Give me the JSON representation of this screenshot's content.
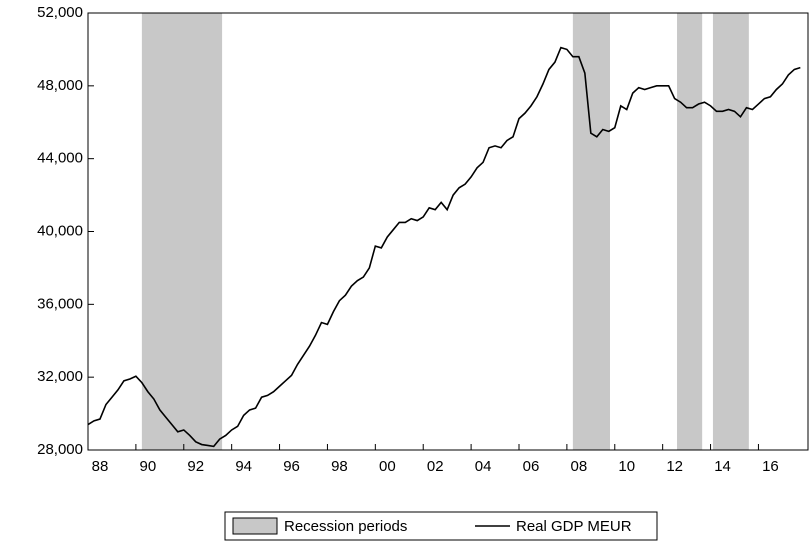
{
  "chart_data": {
    "type": "line",
    "x": [
      1988,
      1988.25,
      1988.5,
      1988.75,
      1989,
      1989.25,
      1989.5,
      1989.75,
      1990,
      1990.25,
      1990.5,
      1990.75,
      1991,
      1991.25,
      1991.5,
      1991.75,
      1992,
      1992.25,
      1992.5,
      1992.75,
      1993,
      1993.25,
      1993.5,
      1993.75,
      1994,
      1994.25,
      1994.5,
      1994.75,
      1995,
      1995.25,
      1995.5,
      1995.75,
      1996,
      1996.25,
      1996.5,
      1996.75,
      1997,
      1997.25,
      1997.5,
      1997.75,
      1998,
      1998.25,
      1998.5,
      1998.75,
      1999,
      1999.25,
      1999.5,
      1999.75,
      2000,
      2000.25,
      2000.5,
      2000.75,
      2001,
      2001.25,
      2001.5,
      2001.75,
      2002,
      2002.25,
      2002.5,
      2002.75,
      2003,
      2003.25,
      2003.5,
      2003.75,
      2004,
      2004.25,
      2004.5,
      2004.75,
      2005,
      2005.25,
      2005.5,
      2005.75,
      2006,
      2006.25,
      2006.5,
      2006.75,
      2007,
      2007.25,
      2007.5,
      2007.75,
      2008,
      2008.25,
      2008.5,
      2008.75,
      2009,
      2009.25,
      2009.5,
      2009.75,
      2010,
      2010.25,
      2010.5,
      2010.75,
      2011,
      2011.25,
      2011.5,
      2011.75,
      2012,
      2012.25,
      2012.5,
      2012.75,
      2013,
      2013.25,
      2013.5,
      2013.75,
      2014,
      2014.25,
      2014.5,
      2014.75,
      2015,
      2015.25,
      2015.5,
      2015.75,
      2016,
      2016.25,
      2016.5,
      2016.75,
      2017,
      2017.25,
      2017.5,
      2017.75
    ],
    "series": [
      {
        "name": "Real GDP MEUR",
        "color": "#000000",
        "values": [
          29400,
          29600,
          29700,
          30500,
          30900,
          31300,
          31800,
          31900,
          32050,
          31700,
          31200,
          30800,
          30200,
          29800,
          29400,
          29000,
          29100,
          28800,
          28450,
          28300,
          28250,
          28200,
          28600,
          28800,
          29100,
          29300,
          29900,
          30200,
          30300,
          30900,
          31000,
          31200,
          31500,
          31800,
          32100,
          32700,
          33200,
          33700,
          34300,
          35000,
          34900,
          35600,
          36200,
          36500,
          37000,
          37300,
          37500,
          38000,
          39200,
          39100,
          39700,
          40100,
          40500,
          40500,
          40700,
          40600,
          40800,
          41300,
          41200,
          41600,
          41200,
          42000,
          42400,
          42600,
          43000,
          43500,
          43800,
          44600,
          44700,
          44600,
          45000,
          45200,
          46200,
          46500,
          46900,
          47400,
          48100,
          48900,
          49300,
          50100,
          50000,
          49600,
          49600,
          48700,
          45400,
          45200,
          45600,
          45500,
          45700,
          46900,
          46700,
          47600,
          47900,
          47800,
          47900,
          48000,
          48000,
          48000,
          47300,
          47100,
          46800,
          46800,
          47000,
          47100,
          46900,
          46600,
          46600,
          46700,
          46600,
          46300,
          46800,
          46700,
          47000,
          47300,
          47400,
          47800,
          48100,
          48600,
          48900,
          49000
        ]
      }
    ],
    "bands": {
      "name": "Recession periods",
      "color": "#c8c8c8",
      "periods": [
        [
          1990.25,
          1993.6
        ],
        [
          2008.25,
          2009.8
        ],
        [
          2012.6,
          2013.65
        ],
        [
          2014.1,
          2015.6
        ]
      ]
    },
    "xlim": [
      1988,
      2018.07
    ],
    "xticks": [
      {
        "value": 1988,
        "label": "88"
      },
      {
        "value": 1990,
        "label": "90"
      },
      {
        "value": 1992,
        "label": "92"
      },
      {
        "value": 1994,
        "label": "94"
      },
      {
        "value": 1996,
        "label": "96"
      },
      {
        "value": 1998,
        "label": "98"
      },
      {
        "value": 2000,
        "label": "00"
      },
      {
        "value": 2002,
        "label": "02"
      },
      {
        "value": 2004,
        "label": "04"
      },
      {
        "value": 2006,
        "label": "06"
      },
      {
        "value": 2008,
        "label": "08"
      },
      {
        "value": 2010,
        "label": "10"
      },
      {
        "value": 2012,
        "label": "12"
      },
      {
        "value": 2014,
        "label": "14"
      },
      {
        "value": 2016,
        "label": "16"
      }
    ],
    "ylim": [
      28000,
      52000
    ],
    "yticks": [
      {
        "value": 28000,
        "label": "28,000"
      },
      {
        "value": 32000,
        "label": "32,000"
      },
      {
        "value": 36000,
        "label": "36,000"
      },
      {
        "value": 40000,
        "label": "40,000"
      },
      {
        "value": 44000,
        "label": "44,000"
      },
      {
        "value": 48000,
        "label": "48,000"
      },
      {
        "value": 52000,
        "label": "52,000"
      }
    ],
    "grid": false
  }
}
